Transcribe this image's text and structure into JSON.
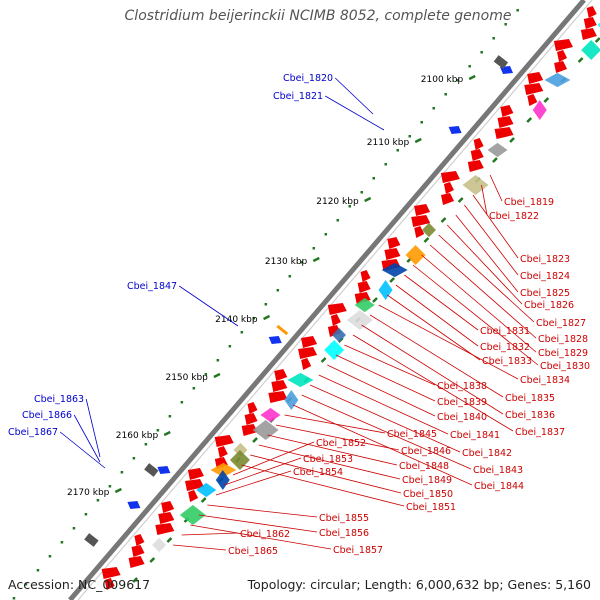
{
  "title": "Clostridium beijerinckii NCIMB 8052, complete genome",
  "footer": {
    "accession": "Accession: NC_009617",
    "topology": "Topology: circular; Length: 6,000,632 bp; Genes: 5,160"
  },
  "colors": {
    "backbone": "#777777",
    "gene_arrow": "#ee0000",
    "label_red": "#cc0000",
    "label_blue": "#0000cc",
    "tick_green": "#227722"
  },
  "kbp_labels": [
    "2100 kbp",
    "2110 kbp",
    "2120 kbp",
    "2130 kbp",
    "2140 kbp",
    "2150 kbp",
    "2160 kbp",
    "2170 kbp"
  ],
  "red_labels": [
    "Cbei_1819",
    "Cbei_1822",
    "Cbei_1823",
    "Cbei_1824",
    "Cbei_1825",
    "Cbei_1826",
    "Cbei_1827",
    "Cbei_1828",
    "Cbei_1829",
    "Cbei_1830",
    "Cbei_1831",
    "Cbei_1832",
    "Cbei_1833",
    "Cbei_1834",
    "Cbei_1835",
    "Cbei_1836",
    "Cbei_1837",
    "Cbei_1838",
    "Cbei_1839",
    "Cbei_1840",
    "Cbei_1841",
    "Cbei_1842",
    "Cbei_1843",
    "Cbei_1844",
    "Cbei_1845",
    "Cbei_1846",
    "Cbei_1848",
    "Cbei_1849",
    "Cbei_1850",
    "Cbei_1851",
    "Cbei_1852",
    "Cbei_1853",
    "Cbei_1854",
    "Cbei_1855",
    "Cbei_1856",
    "Cbei_1857",
    "Cbei_1862",
    "Cbei_1865"
  ],
  "blue_labels": [
    "Cbei_1820",
    "Cbei_1821",
    "Cbei_1847",
    "Cbei_1863",
    "Cbei_1866",
    "Cbei_1867"
  ]
}
